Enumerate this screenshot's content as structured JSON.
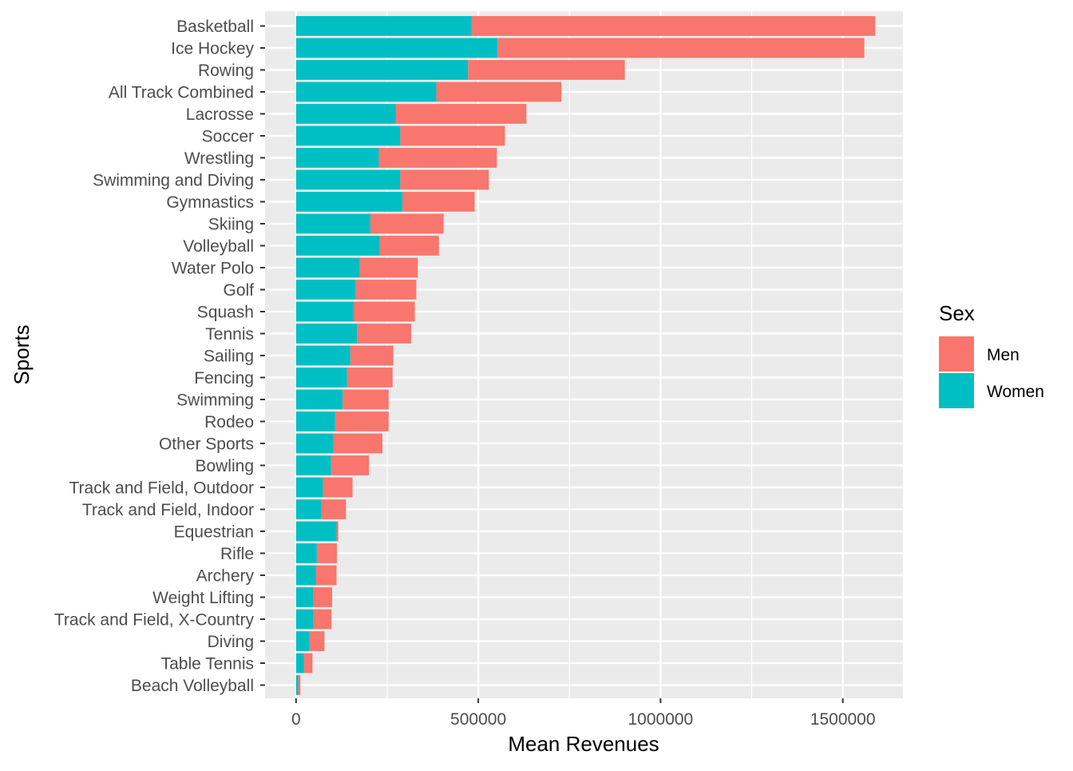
{
  "chart_data": {
    "type": "bar",
    "orientation": "horizontal",
    "stacked": true,
    "title": "",
    "xlabel": "Mean Revenues",
    "ylabel": "Sports",
    "xlim": [
      -85000,
      1665000
    ],
    "xticks": [
      0,
      500000,
      1000000,
      1500000
    ],
    "xtick_labels": [
      "0",
      "500000",
      "1000000",
      "1500000"
    ],
    "grid": true,
    "legend": {
      "title": "Sex",
      "position": "right"
    },
    "categories": [
      "Basketball",
      "Ice Hockey",
      "Rowing",
      "All Track Combined",
      "Lacrosse",
      "Soccer",
      "Wrestling",
      "Swimming and Diving",
      "Gymnastics",
      "Skiing",
      "Volleyball",
      "Water Polo",
      "Golf",
      "Squash",
      "Tennis",
      "Sailing",
      "Fencing",
      "Swimming",
      "Rodeo",
      "Other Sports",
      "Bowling",
      "Track and Field, Outdoor",
      "Track and Field, Indoor",
      "Equestrian",
      "Rifle",
      "Archery",
      "Weight Lifting",
      "Track and Field, X-Country",
      "Diving",
      "Table Tennis",
      "Beach Volleyball"
    ],
    "series": [
      {
        "name": "Women",
        "color": "#00BFC4",
        "values": [
          482000,
          553000,
          472000,
          385000,
          274000,
          286000,
          227000,
          286000,
          292000,
          204000,
          230000,
          175000,
          164000,
          158000,
          167000,
          149000,
          140000,
          128000,
          107000,
          103000,
          96000,
          74000,
          70000,
          111000,
          57000,
          55000,
          48000,
          48000,
          37000,
          22000,
          6000
        ]
      },
      {
        "name": "Men",
        "color": "#F8766D",
        "values": [
          1107000,
          1006000,
          430000,
          343000,
          358000,
          287000,
          324000,
          243000,
          198000,
          201000,
          162000,
          159000,
          166000,
          168000,
          149000,
          118000,
          125000,
          126000,
          147000,
          134000,
          104000,
          81000,
          67000,
          5000,
          55000,
          56000,
          51000,
          49000,
          41000,
          23000,
          6000
        ]
      }
    ]
  }
}
